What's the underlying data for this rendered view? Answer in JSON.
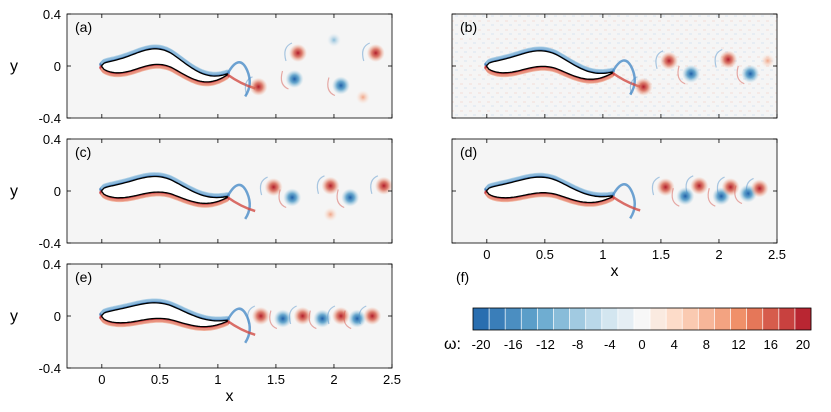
{
  "chart_data": {
    "type": "heatmap",
    "description_quantity": "vorticity field",
    "x_range": [
      -0.3,
      2.5
    ],
    "y_range": [
      -0.4,
      0.4
    ],
    "x_ticks": [
      "0",
      "0.5",
      "1",
      "1.5",
      "2",
      "2.5"
    ],
    "y_ticks": [
      "0.4",
      "0",
      "-0.4"
    ],
    "xlabel": "x",
    "ylabel": "y",
    "panels": [
      {
        "label": "(a)",
        "amplitude": 0.07,
        "vortices": [
          {
            "x": 1.69,
            "y": 0.1,
            "sign": 1
          },
          {
            "x": 1.35,
            "y": -0.16,
            "sign": 1
          },
          {
            "x": 1.66,
            "y": -0.1,
            "sign": -1
          },
          {
            "x": 2.06,
            "y": -0.15,
            "sign": -1
          },
          {
            "x": 2.36,
            "y": 0.1,
            "sign": 1
          },
          {
            "x": 2.25,
            "y": -0.24,
            "sign": 0.4
          },
          {
            "x": 2.0,
            "y": 0.2,
            "sign": -0.4
          }
        ]
      },
      {
        "label": "(b)",
        "amplitude": 0.055,
        "vortices": [
          {
            "x": 1.57,
            "y": 0.04,
            "sign": 1
          },
          {
            "x": 1.76,
            "y": -0.06,
            "sign": -1
          },
          {
            "x": 2.08,
            "y": 0.05,
            "sign": 1
          },
          {
            "x": 2.27,
            "y": -0.06,
            "sign": -1
          },
          {
            "x": 2.42,
            "y": 0.04,
            "sign": 0.5
          },
          {
            "x": 1.35,
            "y": -0.16,
            "sign": 1
          }
        ]
      },
      {
        "label": "(c)",
        "amplitude": 0.05,
        "vortices": [
          {
            "x": 1.48,
            "y": 0.03,
            "sign": 1
          },
          {
            "x": 1.64,
            "y": -0.05,
            "sign": -1
          },
          {
            "x": 1.97,
            "y": 0.04,
            "sign": 1
          },
          {
            "x": 2.14,
            "y": -0.05,
            "sign": -1
          },
          {
            "x": 2.43,
            "y": 0.04,
            "sign": 1
          },
          {
            "x": 1.97,
            "y": -0.18,
            "sign": 0.4
          }
        ]
      },
      {
        "label": "(d)",
        "amplitude": 0.045,
        "vortices": [
          {
            "x": 1.54,
            "y": 0.03,
            "sign": 1
          },
          {
            "x": 1.71,
            "y": -0.04,
            "sign": -1
          },
          {
            "x": 1.83,
            "y": 0.04,
            "sign": 1
          },
          {
            "x": 2.02,
            "y": -0.04,
            "sign": -1
          },
          {
            "x": 2.1,
            "y": 0.03,
            "sign": 1
          },
          {
            "x": 2.25,
            "y": -0.02,
            "sign": -1
          },
          {
            "x": 2.35,
            "y": 0.02,
            "sign": 1
          }
        ]
      },
      {
        "label": "(e)",
        "amplitude": 0.04,
        "vortices": [
          {
            "x": 1.37,
            "y": 0.0,
            "sign": 1
          },
          {
            "x": 1.56,
            "y": -0.02,
            "sign": -1
          },
          {
            "x": 1.73,
            "y": 0.0,
            "sign": 1
          },
          {
            "x": 1.9,
            "y": -0.02,
            "sign": -1
          },
          {
            "x": 2.06,
            "y": 0.0,
            "sign": 1
          },
          {
            "x": 2.2,
            "y": -0.02,
            "sign": -1
          },
          {
            "x": 2.33,
            "y": 0.0,
            "sign": 1
          }
        ]
      }
    ],
    "colorbar": {
      "panel_label": "(f)",
      "symbol": "ω:",
      "min": -20,
      "max": 20,
      "levels": 21,
      "tick_labels": [
        "-20",
        "-16",
        "-12",
        "-8",
        "-4",
        "0",
        "4",
        "8",
        "12",
        "16",
        "20"
      ]
    },
    "colors": {
      "negative_strong": "#1f5fa8",
      "positive_strong": "#b11c2a",
      "background": "#f5f5f5"
    }
  }
}
